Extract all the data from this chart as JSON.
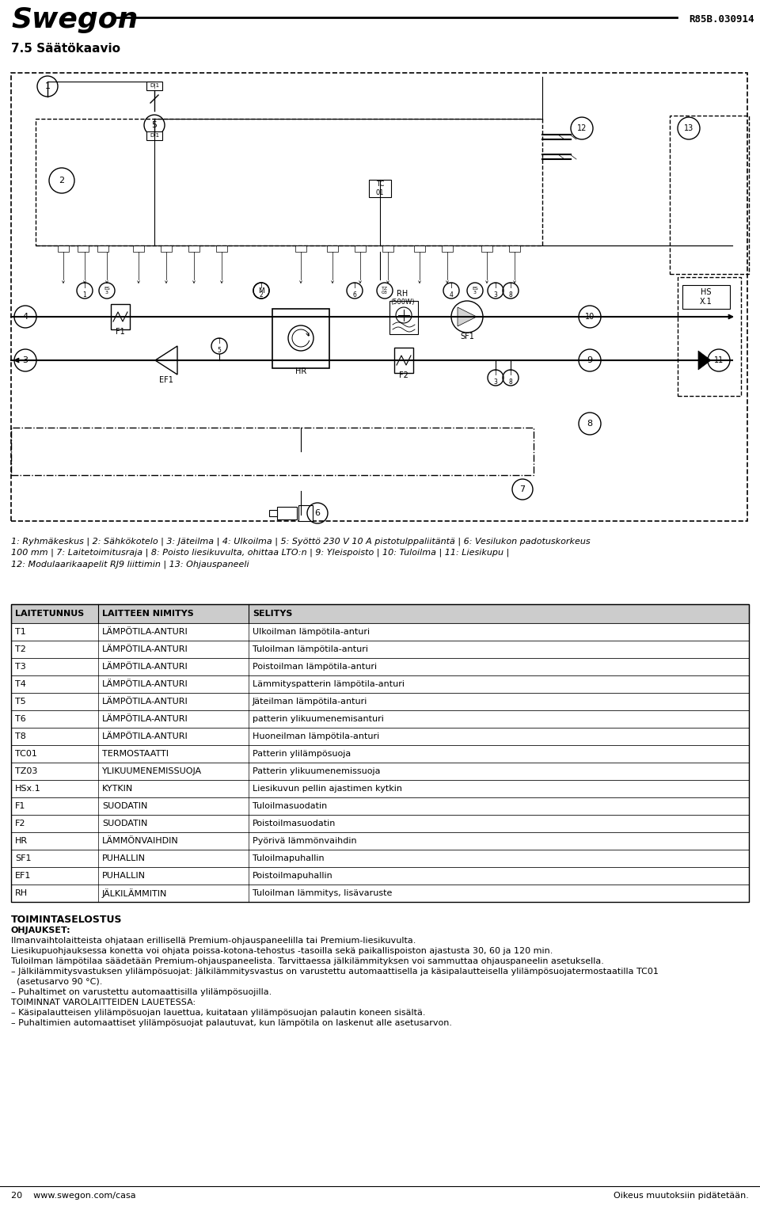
{
  "title_left": "Swegon",
  "title_right": "R85B.030914",
  "section_title": "7.5 Säätökaavio",
  "caption_text": "1: Ryhmäkeskus | 2: Sähkökotelo | 3: Jäteilma | 4: Ulkoilma | 5: Syöttö 230 V 10 A pistotulppaliitäntä | 6: Vesilukon padotuskorkeus\n100 mm | 7: Laitetoimitusraja | 8: Poisto liesikuvulta, ohittaa LTO:n | 9: Yleispoisto | 10: Tuloilma | 11: Liesikupu |\n12: Modulaarikaapelit RJ9 liittimin | 13: Ohjauspaneeli",
  "table_headers": [
    "LAITETUNNUS",
    "LAITTEEN NIMITYS",
    "SELITYS"
  ],
  "table_rows": [
    [
      "T1",
      "LÄMPÖTILA-ANTURI",
      "Ulkoilman lämpötila-anturi"
    ],
    [
      "T2",
      "LÄMPÖTILA-ANTURI",
      "Tuloilman lämpötila-anturi"
    ],
    [
      "T3",
      "LÄMPÖTILA-ANTURI",
      "Poistoilman lämpötila-anturi"
    ],
    [
      "T4",
      "LÄMPÖTILA-ANTURI",
      "Lämmityspatterin lämpötila-anturi"
    ],
    [
      "T5",
      "LÄMPÖTILA-ANTURI",
      "Jäteilman lämpötila-anturi"
    ],
    [
      "T6",
      "LÄMPÖTILA-ANTURI",
      "patterin ylikuumenemisanturi"
    ],
    [
      "T8",
      "LÄMPÖTILA-ANTURI",
      "Huoneilman lämpötila-anturi"
    ],
    [
      "TC01",
      "TERMOSTAATTI",
      "Patterin ylilämpösuoja"
    ],
    [
      "TZ03",
      "YLIKUUMENEMISSUOJA",
      "Patterin ylikuumenemissuoja"
    ],
    [
      "HSx.1",
      "KYTKIN",
      "Liesikuvun pellin ajastimen kytkin"
    ],
    [
      "F1",
      "SUODATIN",
      "Tuloilmasuodatin"
    ],
    [
      "F2",
      "SUODATIN",
      "Poistoilmasuodatin"
    ],
    [
      "HR",
      "LÄMMÖNVAIHDIN",
      "Pyörivä lämmönvaihdin"
    ],
    [
      "SF1",
      "PUHALLIN",
      "Tuloilmapuhallin"
    ],
    [
      "EF1",
      "PUHALLIN",
      "Poistoilmapuhallin"
    ],
    [
      "RH",
      "JÄLKILÄMMITIN",
      "Tuloilman lämmitys, lisävaruste"
    ]
  ],
  "toiminta_title": "TOIMINTASELOSTUS",
  "ohjaukset_title": "OHJAUKSET:",
  "toiminta_lines": [
    "Ilmanvaihtolaitteista ohjataan erillisellä Premium-ohjauspaneelilla tai Premium-liesikuvulta.",
    "Liesikupuohjauksessa konetta voi ohjata poissa-kotona-tehostus -tasoilla sekä paikallispoiston ajastusta 30, 60 ja 120 min.",
    "Tuloilman lämpötilaa säädetään Premium-ohjauspaneelista. Tarvittaessa jälkilämmityksen voi sammuttaa ohjauspaneelin asetuksella.",
    "– Jälkilämmitysvastuksen ylilämpösuojat: Jälkilämmitysvastus on varustettu automaattisella ja käsipalautteisella ylilämpösuojatermostaatilla TC01",
    "  (asetusarvo 90 °C).",
    "– Puhaltimet on varustettu automaattisilla ylilämpösuojilla.",
    "TOIMINNAT VAROLAITTEIDEN LAUETESSA:",
    "– Käsipalautteisen ylilämpösuojan lauettua, kuitataan ylilämpösuojan palautin koneen sisältä.",
    "– Puhaltimien automaattiset ylilämpösuojat palautuvat, kun lämpötila on laskenut alle asetusarvon."
  ],
  "footer_left": "20    www.swegon.com/casa",
  "footer_right": "Oikeus muutoksiin pidätetään."
}
